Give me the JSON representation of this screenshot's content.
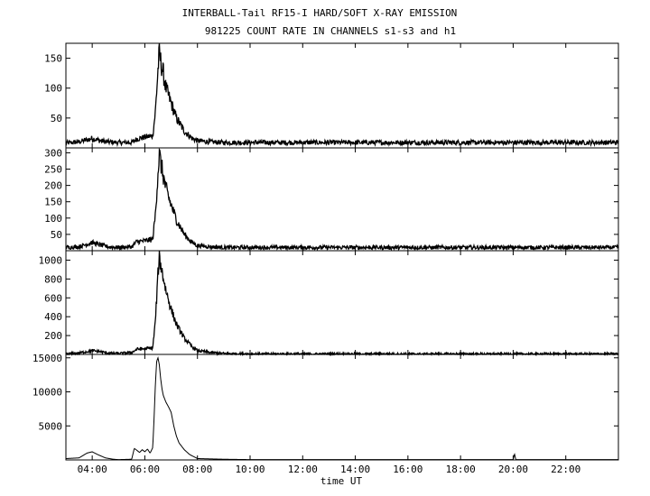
{
  "title_line1": "INTERBALL-Tail RF15-I HARD/SOFT X-RAY EMISSION",
  "title_line2": "981225  COUNT RATE IN CHANNELS s1-s3 and h1",
  "xlabel": "time UT",
  "x_ticks": [
    "04:00",
    "06:00",
    "08:00",
    "10:00",
    "12:00",
    "14:00",
    "16:00",
    "18:00",
    "20:00",
    "22:00"
  ],
  "x_tick_hours": [
    4,
    6,
    8,
    10,
    12,
    14,
    16,
    18,
    20,
    22
  ],
  "x_range_hours": [
    3.0,
    24.0
  ],
  "chart_data": [
    {
      "type": "line",
      "ylim": [
        0,
        175
      ],
      "y_ticks": [
        50,
        100,
        150
      ],
      "noise": 3,
      "series": [
        {
          "x": [
            3.0,
            3.5,
            4.0,
            4.3,
            4.6,
            5.0,
            5.5,
            5.7,
            6.0,
            6.3,
            6.4,
            6.5,
            6.55,
            6.6,
            6.7,
            6.8,
            7.0,
            7.2,
            7.5,
            7.8,
            8.0,
            8.5,
            9.0,
            10.0,
            24.0
          ],
          "values": [
            8,
            10,
            16,
            12,
            10,
            9,
            9,
            15,
            18,
            20,
            60,
            130,
            160,
            145,
            125,
            100,
            75,
            50,
            28,
            16,
            12,
            10,
            9,
            9,
            9
          ]
        }
      ]
    },
    {
      "type": "line",
      "ylim": [
        0,
        315
      ],
      "y_ticks": [
        50,
        100,
        150,
        200,
        250,
        300
      ],
      "noise": 5,
      "series": [
        {
          "x": [
            3.0,
            3.5,
            4.0,
            4.3,
            4.6,
            5.0,
            5.5,
            5.7,
            6.0,
            6.3,
            6.4,
            6.5,
            6.55,
            6.6,
            6.7,
            6.8,
            7.0,
            7.2,
            7.5,
            7.8,
            8.0,
            8.5,
            9.0,
            10.0,
            24.0
          ],
          "values": [
            10,
            12,
            25,
            18,
            12,
            10,
            12,
            28,
            30,
            35,
            110,
            240,
            295,
            270,
            230,
            190,
            140,
            95,
            50,
            25,
            16,
            12,
            10,
            10,
            10
          ]
        }
      ]
    },
    {
      "type": "line",
      "ylim": [
        0,
        1100
      ],
      "y_ticks": [
        200,
        400,
        600,
        800,
        1000
      ],
      "noise": 12,
      "series": [
        {
          "x": [
            3.0,
            3.5,
            4.0,
            4.3,
            4.6,
            5.0,
            5.5,
            5.7,
            6.0,
            6.3,
            6.4,
            6.5,
            6.55,
            6.6,
            6.7,
            6.8,
            7.0,
            7.2,
            7.5,
            7.8,
            8.0,
            8.5,
            9.0,
            10.0,
            24.0
          ],
          "values": [
            5,
            15,
            40,
            30,
            15,
            10,
            20,
            55,
            60,
            70,
            350,
            850,
            1040,
            950,
            820,
            680,
            480,
            320,
            170,
            80,
            40,
            20,
            10,
            5,
            5
          ]
        }
      ]
    },
    {
      "type": "line",
      "ylim": [
        0,
        15500
      ],
      "y_ticks": [
        5000,
        10000,
        15000
      ],
      "noise": 0,
      "series": [
        {
          "x": [
            3.0,
            3.5,
            3.8,
            4.0,
            4.2,
            4.5,
            4.8,
            5.0,
            5.5,
            5.6,
            5.7,
            5.8,
            5.9,
            6.0,
            6.1,
            6.2,
            6.3,
            6.35,
            6.4,
            6.45,
            6.5,
            6.55,
            6.6,
            6.65,
            6.7,
            6.75,
            6.8,
            6.9,
            7.0,
            7.1,
            7.2,
            7.3,
            7.5,
            7.7,
            7.9,
            8.0,
            9.0,
            10.0,
            20.0,
            20.05,
            20.1,
            24.0
          ],
          "values": [
            200,
            300,
            1000,
            1200,
            800,
            300,
            100,
            50,
            100,
            1700,
            1400,
            1100,
            1500,
            1200,
            1600,
            1000,
            1800,
            6000,
            11000,
            14500,
            15000,
            14000,
            12000,
            10500,
            9500,
            9000,
            8500,
            7800,
            7000,
            5000,
            3500,
            2500,
            1500,
            800,
            400,
            200,
            100,
            50,
            50,
            900,
            50,
            50
          ]
        }
      ]
    }
  ]
}
